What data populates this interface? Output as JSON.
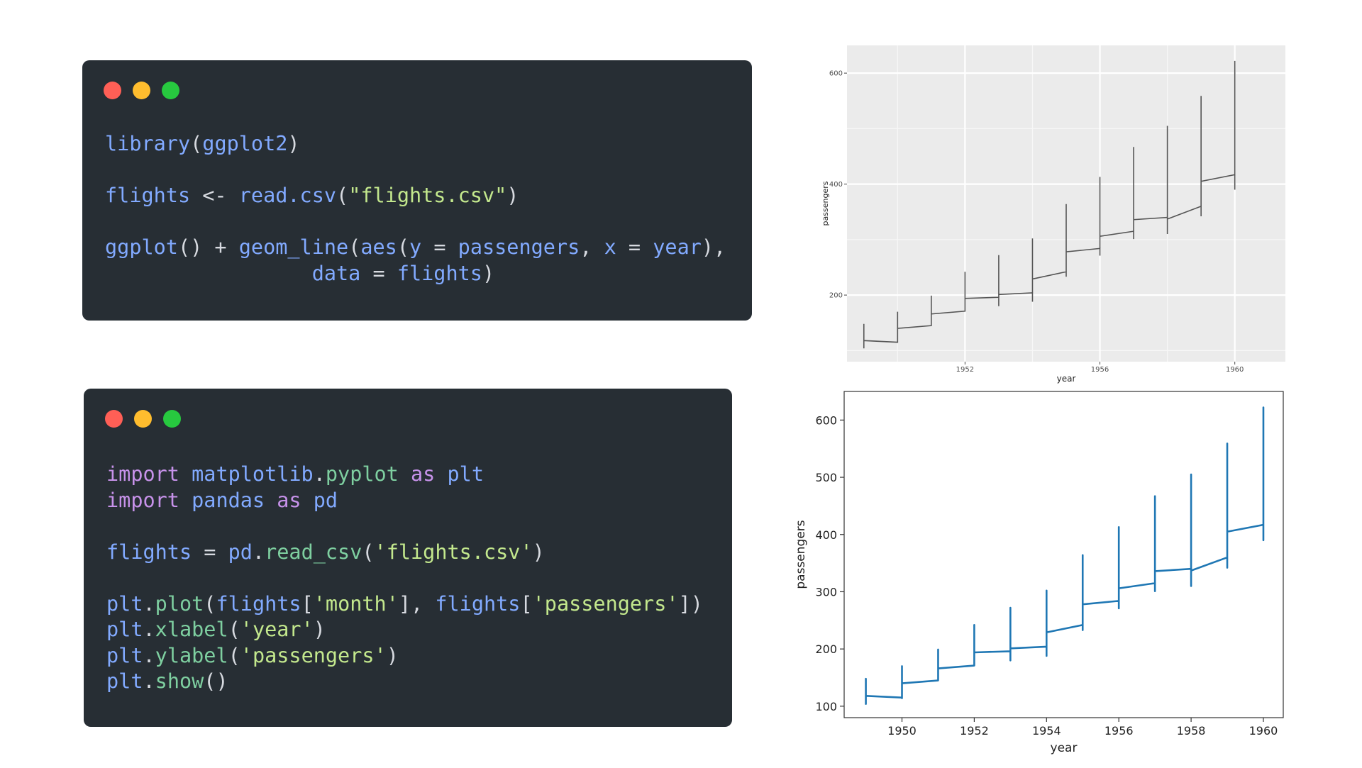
{
  "colors": {
    "window_bg": "#272e34",
    "dot_red": "#ff5f56",
    "dot_yellow": "#ffbd2e",
    "dot_green": "#27c93f",
    "syntax_default": "#d7dae0",
    "syntax_function": "#82aaff",
    "syntax_string": "#c3e88d",
    "syntax_keyword": "#c792ea",
    "syntax_method": "#7ecfa0",
    "ggplot_panel": "#ebebeb",
    "ggplot_line": "#555555",
    "mpl_line": "#1f77b4"
  },
  "code_r": {
    "lines": [
      [
        [
          "library",
          "function"
        ],
        [
          "(",
          "default"
        ],
        [
          "ggplot2",
          "function"
        ],
        [
          ")",
          "default"
        ]
      ],
      [],
      [
        [
          "flights",
          "function"
        ],
        [
          " <- ",
          "default"
        ],
        [
          "read.csv",
          "function"
        ],
        [
          "(",
          "default"
        ],
        [
          "\"flights.csv\"",
          "string"
        ],
        [
          ")",
          "default"
        ]
      ],
      [],
      [
        [
          "ggplot",
          "function"
        ],
        [
          "() + ",
          "default"
        ],
        [
          "geom_line",
          "function"
        ],
        [
          "(",
          "default"
        ],
        [
          "aes",
          "function"
        ],
        [
          "(",
          "default"
        ],
        [
          "y",
          "function"
        ],
        [
          " = ",
          "default"
        ],
        [
          "passengers",
          "function"
        ],
        [
          ", ",
          "default"
        ],
        [
          "x",
          "function"
        ],
        [
          " = ",
          "default"
        ],
        [
          "year",
          "function"
        ],
        [
          "),",
          "default"
        ]
      ],
      [
        [
          "                 ",
          "default"
        ],
        [
          "data",
          "function"
        ],
        [
          " = ",
          "default"
        ],
        [
          "flights",
          "function"
        ],
        [
          ")",
          "default"
        ]
      ]
    ]
  },
  "code_py": {
    "lines": [
      [
        [
          "import",
          "keyword"
        ],
        [
          " ",
          "default"
        ],
        [
          "matplotlib",
          "function"
        ],
        [
          ".",
          "default"
        ],
        [
          "pyplot",
          "method"
        ],
        [
          " ",
          "default"
        ],
        [
          "as",
          "keyword"
        ],
        [
          " ",
          "default"
        ],
        [
          "plt",
          "function"
        ]
      ],
      [
        [
          "import",
          "keyword"
        ],
        [
          " ",
          "default"
        ],
        [
          "pandas",
          "function"
        ],
        [
          " ",
          "default"
        ],
        [
          "as",
          "keyword"
        ],
        [
          " ",
          "default"
        ],
        [
          "pd",
          "function"
        ]
      ],
      [],
      [
        [
          "flights",
          "function"
        ],
        [
          " = ",
          "default"
        ],
        [
          "pd",
          "function"
        ],
        [
          ".",
          "default"
        ],
        [
          "read_csv",
          "method"
        ],
        [
          "(",
          "default"
        ],
        [
          "'flights.csv'",
          "string"
        ],
        [
          ")",
          "default"
        ]
      ],
      [],
      [
        [
          "plt",
          "function"
        ],
        [
          ".",
          "default"
        ],
        [
          "plot",
          "method"
        ],
        [
          "(",
          "default"
        ],
        [
          "flights",
          "function"
        ],
        [
          "[",
          "default"
        ],
        [
          "'month'",
          "string"
        ],
        [
          "], ",
          "default"
        ],
        [
          "flights",
          "function"
        ],
        [
          "[",
          "default"
        ],
        [
          "'passengers'",
          "string"
        ],
        [
          "])",
          "default"
        ]
      ],
      [
        [
          "plt",
          "function"
        ],
        [
          ".",
          "default"
        ],
        [
          "xlabel",
          "method"
        ],
        [
          "(",
          "default"
        ],
        [
          "'year'",
          "string"
        ],
        [
          ")",
          "default"
        ]
      ],
      [
        [
          "plt",
          "function"
        ],
        [
          ".",
          "default"
        ],
        [
          "ylabel",
          "method"
        ],
        [
          "(",
          "default"
        ],
        [
          "'passengers'",
          "string"
        ],
        [
          ")",
          "default"
        ]
      ],
      [
        [
          "plt",
          "function"
        ],
        [
          ".",
          "default"
        ],
        [
          "show",
          "method"
        ],
        [
          "()",
          "default"
        ]
      ]
    ]
  },
  "chart_data": [
    {
      "type": "line",
      "style": "ggplot",
      "xlabel": "year",
      "ylabel": "passengers",
      "xlim": [
        1948.5,
        1961.5
      ],
      "ylim": [
        80,
        650
      ],
      "xticks": [
        1952,
        1956,
        1960
      ],
      "yticks": [
        200,
        400,
        600
      ],
      "grid": true,
      "series": [
        {
          "x_ref": "flights.x",
          "y_ref": "flights.y"
        }
      ]
    },
    {
      "type": "line",
      "style": "matplotlib",
      "xlabel": "year",
      "ylabel": "passengers",
      "xlim": [
        1948.4,
        1960.55
      ],
      "ylim": [
        80,
        650
      ],
      "xticks": [
        1950,
        1952,
        1954,
        1956,
        1958,
        1960
      ],
      "yticks": [
        100,
        200,
        300,
        400,
        500,
        600
      ],
      "grid": false,
      "series": [
        {
          "x_ref": "flights.x",
          "y_ref": "flights.y"
        }
      ]
    }
  ],
  "flights": {
    "x": [
      1949,
      1949,
      1949,
      1949,
      1949,
      1949,
      1949,
      1949,
      1949,
      1949,
      1949,
      1949,
      1950,
      1950,
      1950,
      1950,
      1950,
      1950,
      1950,
      1950,
      1950,
      1950,
      1950,
      1950,
      1951,
      1951,
      1951,
      1951,
      1951,
      1951,
      1951,
      1951,
      1951,
      1951,
      1951,
      1951,
      1952,
      1952,
      1952,
      1952,
      1952,
      1952,
      1952,
      1952,
      1952,
      1952,
      1952,
      1952,
      1953,
      1953,
      1953,
      1953,
      1953,
      1953,
      1953,
      1953,
      1953,
      1953,
      1953,
      1953,
      1954,
      1954,
      1954,
      1954,
      1954,
      1954,
      1954,
      1954,
      1954,
      1954,
      1954,
      1954,
      1955,
      1955,
      1955,
      1955,
      1955,
      1955,
      1955,
      1955,
      1955,
      1955,
      1955,
      1955,
      1956,
      1956,
      1956,
      1956,
      1956,
      1956,
      1956,
      1956,
      1956,
      1956,
      1956,
      1956,
      1957,
      1957,
      1957,
      1957,
      1957,
      1957,
      1957,
      1957,
      1957,
      1957,
      1957,
      1957,
      1958,
      1958,
      1958,
      1958,
      1958,
      1958,
      1958,
      1958,
      1958,
      1958,
      1958,
      1958,
      1959,
      1959,
      1959,
      1959,
      1959,
      1959,
      1959,
      1959,
      1959,
      1959,
      1959,
      1959,
      1960,
      1960,
      1960,
      1960,
      1960,
      1960,
      1960,
      1960,
      1960,
      1960,
      1960,
      1960
    ],
    "y": [
      112,
      118,
      132,
      129,
      121,
      135,
      148,
      148,
      136,
      119,
      104,
      118,
      115,
      126,
      141,
      135,
      125,
      149,
      170,
      170,
      158,
      133,
      114,
      140,
      145,
      150,
      178,
      163,
      172,
      178,
      199,
      199,
      184,
      162,
      146,
      166,
      171,
      180,
      193,
      181,
      183,
      218,
      230,
      242,
      209,
      191,
      172,
      194,
      196,
      196,
      236,
      235,
      229,
      243,
      264,
      272,
      237,
      211,
      180,
      201,
      204,
      188,
      235,
      227,
      234,
      264,
      302,
      293,
      259,
      229,
      203,
      229,
      242,
      233,
      267,
      269,
      270,
      315,
      364,
      347,
      312,
      274,
      237,
      278,
      284,
      277,
      317,
      313,
      318,
      374,
      413,
      405,
      355,
      306,
      271,
      306,
      315,
      301,
      356,
      348,
      355,
      422,
      465,
      467,
      404,
      347,
      305,
      336,
      340,
      318,
      362,
      348,
      363,
      435,
      491,
      505,
      404,
      359,
      310,
      337,
      360,
      342,
      406,
      396,
      420,
      472,
      548,
      559,
      463,
      407,
      362,
      405,
      417,
      391,
      419,
      461,
      472,
      535,
      622,
      606,
      508,
      461,
      390,
      432
    ]
  }
}
